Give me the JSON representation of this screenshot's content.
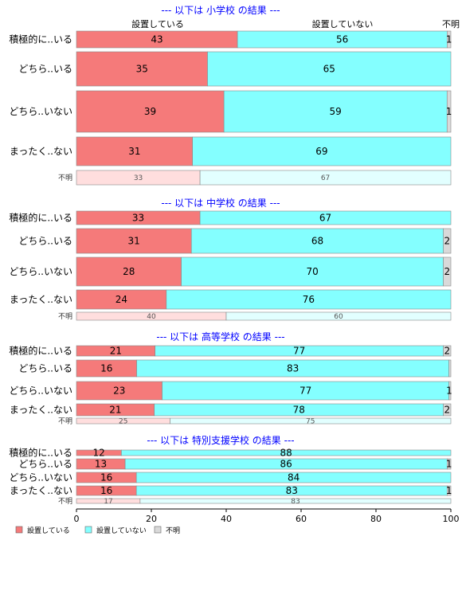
{
  "chart_data": {
    "type": "bar",
    "orientation": "horizontal-stacked-percent",
    "xlim": [
      0,
      100
    ],
    "xticks": [
      "0",
      "20",
      "40",
      "60",
      "80",
      "100"
    ],
    "legend": {
      "placement": "bottom-left",
      "items": [
        {
          "label": "設置している",
          "color": "#f57a7a"
        },
        {
          "label": "設置していない",
          "color": "#84ffff"
        },
        {
          "label": "不明",
          "color": "#d9d9d9"
        }
      ]
    },
    "column_labels": [
      "設置している",
      "設置していない",
      "不明"
    ],
    "panels": [
      {
        "title": "--- 以下は 小学校 の結果 ---",
        "show_column_labels": true,
        "rows": [
          {
            "label": "積極的に..いる",
            "values": [
              43,
              56,
              1
            ],
            "value_labels": [
              "43",
              "56",
              "1"
            ]
          },
          {
            "label": "どちら..いる",
            "values": [
              35,
              65,
              0
            ],
            "value_labels": [
              "35",
              "65",
              ""
            ]
          },
          {
            "label": "どちら..いない",
            "values": [
              39,
              59,
              1
            ],
            "value_labels": [
              "39",
              "59",
              "1"
            ]
          },
          {
            "label": "まったく..ない",
            "values": [
              31,
              69,
              0
            ],
            "value_labels": [
              "31",
              "69",
              ""
            ]
          },
          {
            "label": "不明",
            "values": [
              33,
              67,
              0
            ],
            "value_labels": [
              "33",
              "67",
              ""
            ],
            "faded": true
          }
        ]
      },
      {
        "title": "--- 以下は 中学校 の結果 ---",
        "show_column_labels": false,
        "rows": [
          {
            "label": "積極的に..いる",
            "values": [
              33,
              67,
              0
            ],
            "value_labels": [
              "33",
              "67",
              ""
            ]
          },
          {
            "label": "どちら..いる",
            "values": [
              31,
              68,
              2
            ],
            "value_labels": [
              "31",
              "68",
              "2"
            ]
          },
          {
            "label": "どちら..いない",
            "values": [
              28,
              70,
              2
            ],
            "value_labels": [
              "28",
              "70",
              "2"
            ]
          },
          {
            "label": "まったく..ない",
            "values": [
              24,
              76,
              0
            ],
            "value_labels": [
              "24",
              "76",
              ""
            ]
          },
          {
            "label": "不明",
            "values": [
              40,
              60,
              0
            ],
            "value_labels": [
              "40",
              "60",
              ""
            ],
            "faded": true
          }
        ]
      },
      {
        "title": "--- 以下は 高等学校 の結果 ---",
        "show_column_labels": false,
        "rows": [
          {
            "label": "積極的に..いる",
            "values": [
              21,
              77,
              2
            ],
            "value_labels": [
              "21",
              "77",
              "2"
            ]
          },
          {
            "label": "どちら..いる",
            "values": [
              16,
              83,
              0.5
            ],
            "value_labels": [
              "16",
              "83",
              ""
            ]
          },
          {
            "label": "どちら..いない",
            "values": [
              23,
              77,
              0.5
            ],
            "value_labels": [
              "23",
              "77",
              "1"
            ]
          },
          {
            "label": "まったく..ない",
            "values": [
              21,
              78,
              2
            ],
            "value_labels": [
              "21",
              "78",
              "2"
            ]
          },
          {
            "label": "不明",
            "values": [
              25,
              75,
              0
            ],
            "value_labels": [
              "25",
              "75",
              ""
            ],
            "faded": true
          }
        ]
      },
      {
        "title": "--- 以下は 特別支援学校 の結果 ---",
        "show_column_labels": false,
        "rows": [
          {
            "label": "積極的に..いる",
            "values": [
              12,
              88,
              0
            ],
            "value_labels": [
              "12",
              "88",
              ""
            ]
          },
          {
            "label": "どちら..いる",
            "values": [
              13,
              86,
              1
            ],
            "value_labels": [
              "13",
              "86",
              "1"
            ]
          },
          {
            "label": "どちら..いない",
            "values": [
              16,
              84,
              0
            ],
            "value_labels": [
              "16",
              "84",
              ""
            ]
          },
          {
            "label": "まったく..ない",
            "values": [
              16,
              83,
              1
            ],
            "value_labels": [
              "16",
              "83",
              "1"
            ]
          },
          {
            "label": "不明",
            "values": [
              17,
              83,
              0
            ],
            "value_labels": [
              "17",
              "83",
              ""
            ],
            "faded": true
          }
        ]
      }
    ]
  }
}
